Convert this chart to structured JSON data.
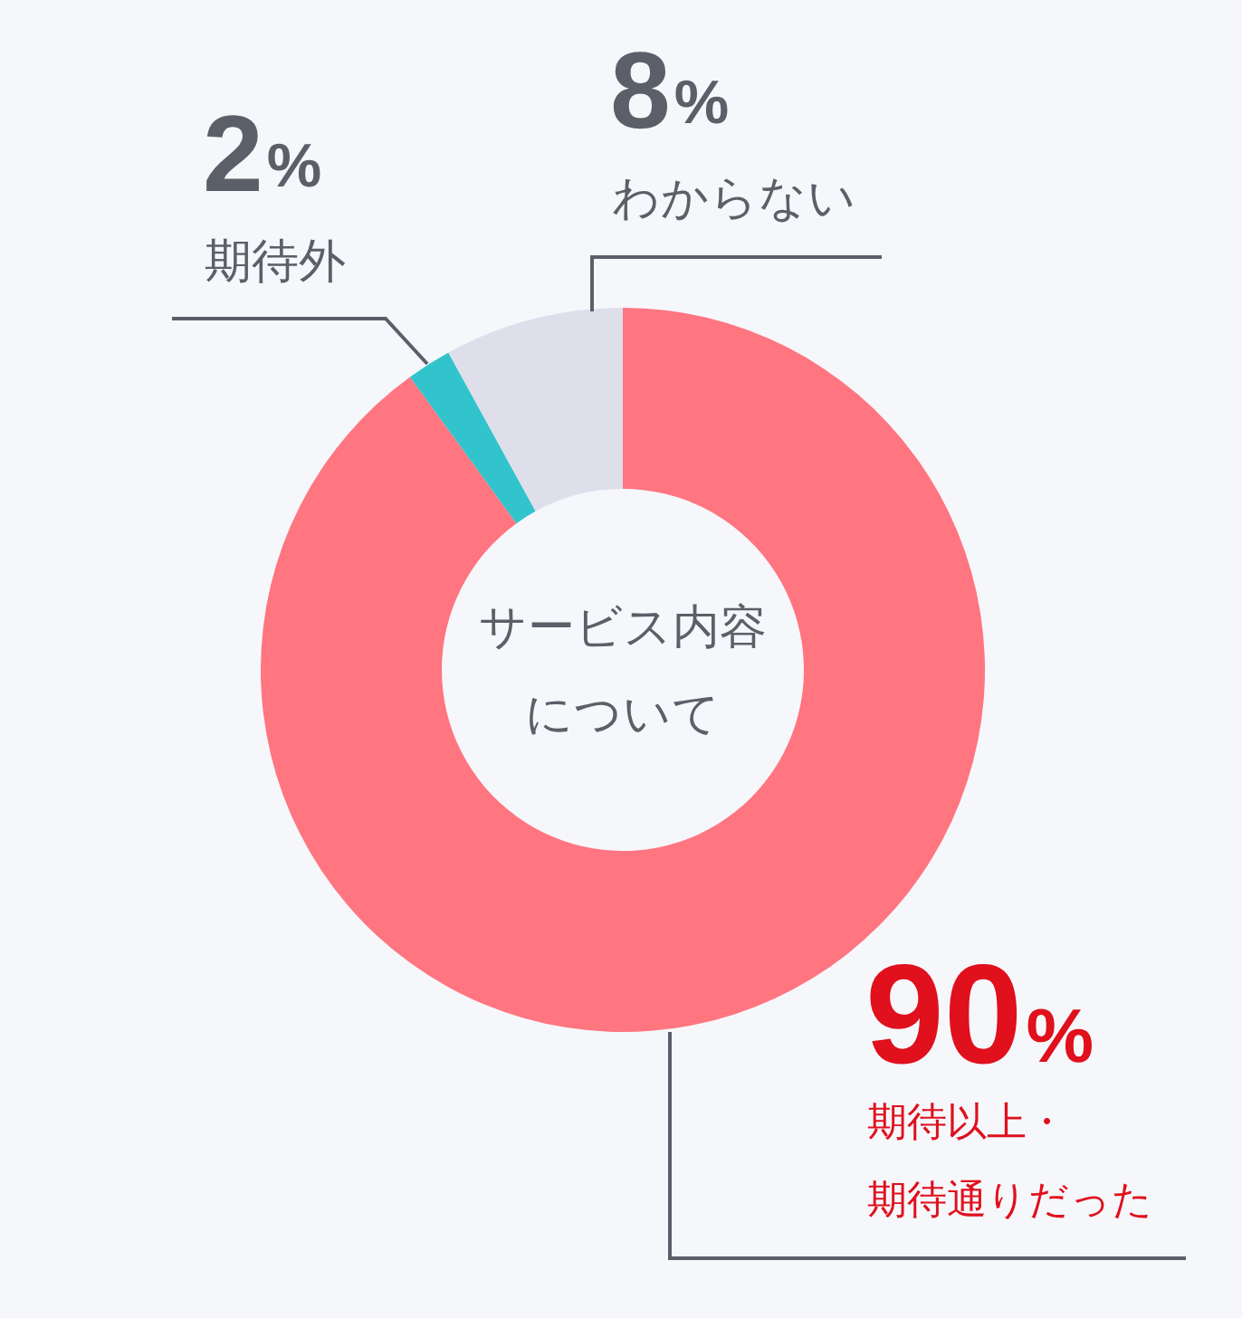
{
  "chart_data": {
    "type": "donut",
    "title": "サービス内容について",
    "categories": [
      "期待以上・期待通りだった",
      "期待外",
      "わからない"
    ],
    "values": [
      90,
      2,
      8
    ],
    "colors": [
      "#ff7580",
      "#32c4cc",
      "#dedfea"
    ],
    "value_labels": [
      "90%",
      "2%",
      "8%"
    ]
  }
}
